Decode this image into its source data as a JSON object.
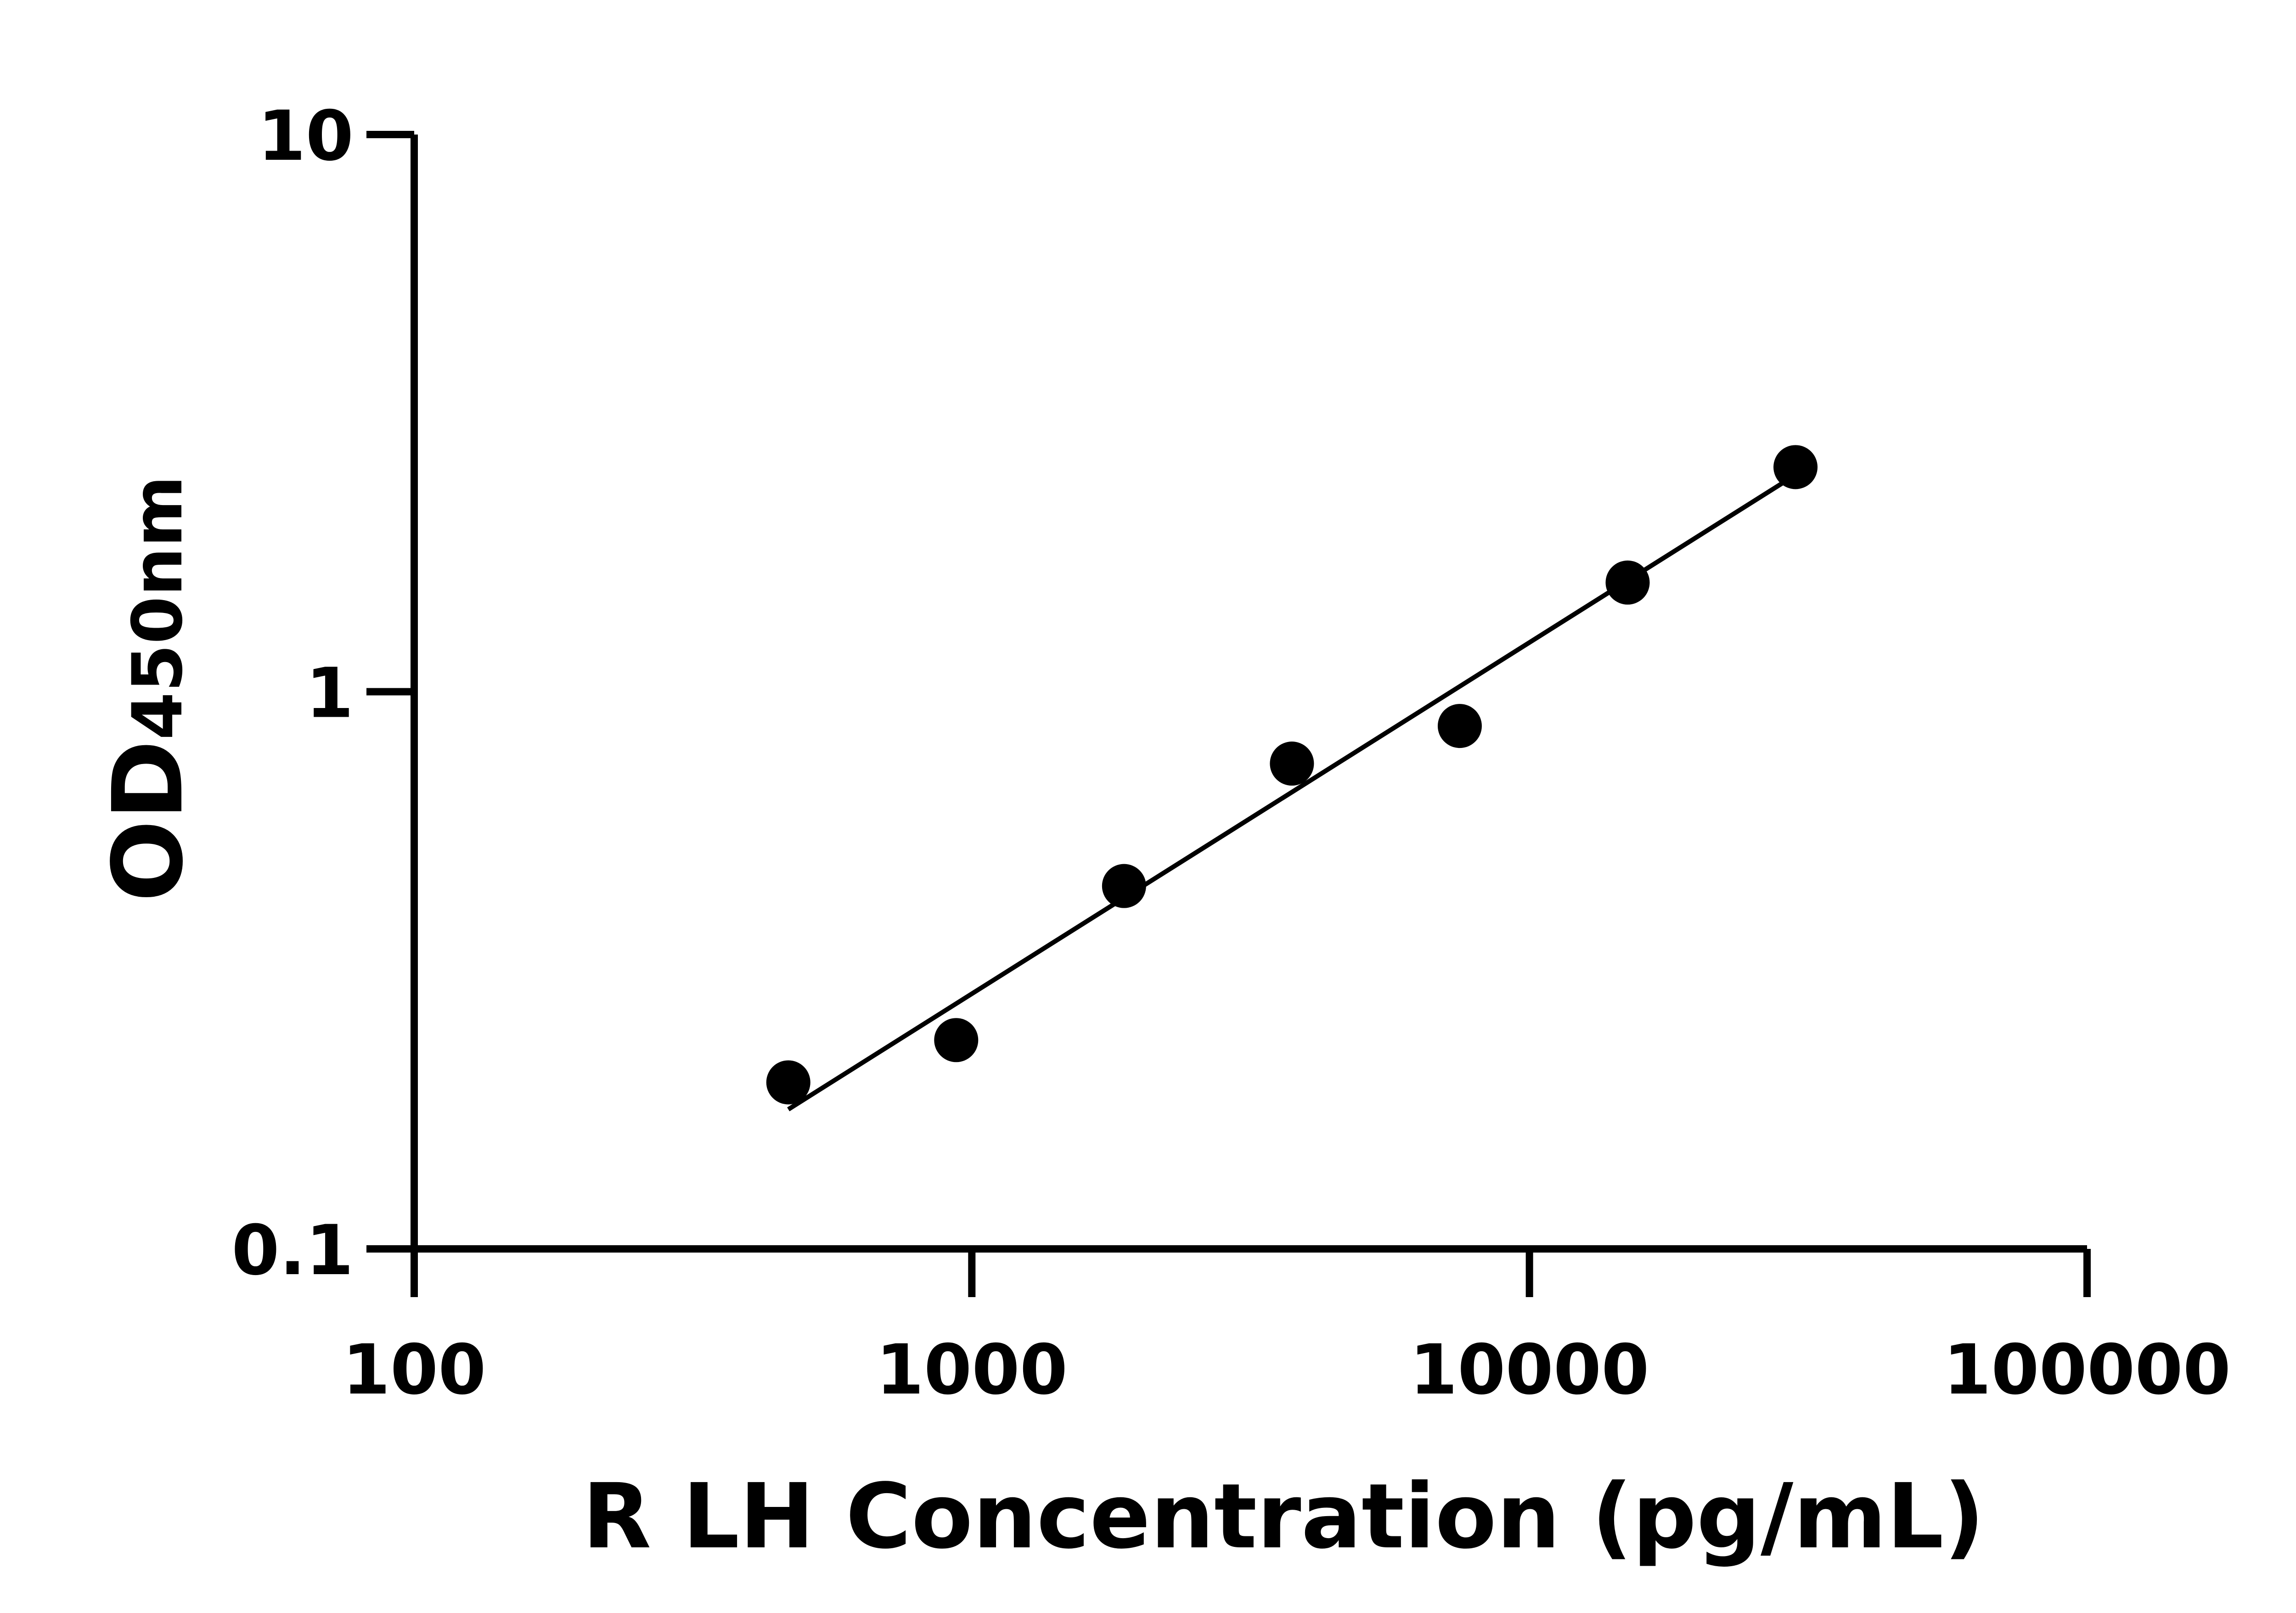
{
  "chart_data": {
    "type": "scatter",
    "title": "",
    "xlabel": "R LH Concentration (pg/mL)",
    "ylabel_main": "OD",
    "ylabel_sub": "450nm",
    "x_scale": "log",
    "y_scale": "log",
    "xlim": [
      100,
      100000
    ],
    "ylim": [
      0.1,
      10
    ],
    "x_ticks": [
      100,
      1000,
      10000,
      100000
    ],
    "x_tick_labels": [
      "100",
      "1000",
      "10000",
      "100000"
    ],
    "y_ticks": [
      0.1,
      1,
      10
    ],
    "y_tick_labels": [
      "0.1",
      "1",
      "10"
    ],
    "grid": false,
    "colors": {
      "points": "#000000",
      "line": "#000000",
      "axes": "#000000"
    },
    "points": {
      "x": [
        468.75,
        937.5,
        1875,
        3750,
        7500,
        15000,
        30000
      ],
      "y": [
        0.199,
        0.237,
        0.448,
        0.743,
        0.868,
        1.57,
        2.53
      ]
    },
    "fit_line": {
      "x": [
        468.75,
        30000
      ],
      "y": [
        0.178,
        2.45
      ]
    }
  }
}
